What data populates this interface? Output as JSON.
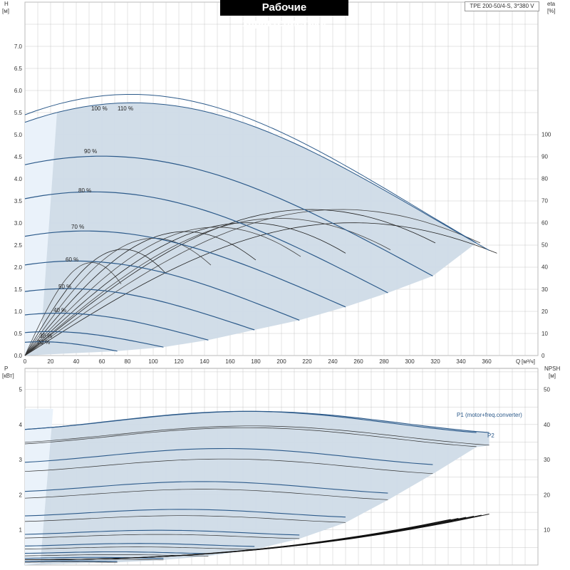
{
  "title": "Рабочие характеристики",
  "model": "TPE 200-50/4-S, 3*380 V",
  "colors": {
    "fill": "#cfdbe7",
    "fill_light": "#eaf2fa",
    "curve": "#2c5a8a",
    "grid": "#c8c8c8",
    "eff": "#555555"
  },
  "chart_data": [
    {
      "type": "line",
      "name_key": "head",
      "ylabel": "H",
      "yunit": "[м]",
      "y2label": "eta",
      "y2unit": "[%]",
      "xlabel": "Q",
      "xunit": "[м³/ч]",
      "xlim": [
        0,
        400
      ],
      "ylim": [
        0,
        8
      ],
      "y2lim": [
        0,
        100
      ],
      "x_ticks": [
        0,
        20,
        40,
        60,
        80,
        100,
        120,
        140,
        160,
        180,
        200,
        220,
        240,
        260,
        280,
        300,
        320,
        340,
        360
      ],
      "y_ticks": [
        "0.0",
        "0.5",
        "1.0",
        "1.5",
        "2.0",
        "2.5",
        "3.0",
        "3.5",
        "4.0",
        "4.5",
        "5.0",
        "5.5",
        "6.0",
        "6.5",
        "7.0"
      ],
      "y2_ticks": [
        0,
        10,
        20,
        30,
        40,
        50,
        60,
        70,
        80,
        90,
        100
      ],
      "grid": true,
      "speed_curves": [
        {
          "label": "110 %",
          "h0": 5.28,
          "qmax": 362,
          "hend": 2.38
        },
        {
          "label": "100 %",
          "h0": 5.45,
          "qmax": 352,
          "hend": 2.55
        },
        {
          "label": "90 %",
          "h0": 4.32,
          "qmax": 318,
          "hend": 1.8
        },
        {
          "label": "80 %",
          "h0": 3.55,
          "qmax": 283,
          "hend": 1.42
        },
        {
          "label": "70 %",
          "h0": 2.7,
          "qmax": 250,
          "hend": 1.1
        },
        {
          "label": "60 %",
          "h0": 2.05,
          "qmax": 214,
          "hend": 0.8
        },
        {
          "label": "50 %",
          "h0": 1.45,
          "qmax": 179,
          "hend": 0.58
        },
        {
          "label": "40 %",
          "h0": 0.92,
          "qmax": 143,
          "hend": 0.35
        },
        {
          "label": "30 %",
          "h0": 0.52,
          "qmax": 108,
          "hend": 0.19
        },
        {
          "label": "20 %",
          "h0": 0.3,
          "qmax": 72,
          "hend": 0.1
        }
      ],
      "eff_curves": [
        {
          "qmax": 368,
          "peak": 60
        },
        {
          "qmax": 355,
          "peak": 66
        },
        {
          "qmax": 320,
          "peak": 66
        },
        {
          "qmax": 285,
          "peak": 62
        },
        {
          "qmax": 250,
          "peak": 60
        },
        {
          "qmax": 215,
          "peak": 58
        },
        {
          "qmax": 180,
          "peak": 56
        },
        {
          "qmax": 145,
          "peak": 53
        },
        {
          "qmax": 110,
          "peak": 48
        },
        {
          "qmax": 75,
          "peak": 42
        }
      ]
    },
    {
      "type": "line",
      "name_key": "power",
      "ylabel": "P",
      "yunit": "[кВт]",
      "y2label": "NPSH",
      "y2unit": "[м]",
      "xlim": [
        0,
        400
      ],
      "ylim": [
        0,
        5.6
      ],
      "y2lim": [
        0,
        56
      ],
      "y_ticks": [
        1,
        2,
        3,
        4,
        5
      ],
      "y2_ticks": [
        10,
        20,
        30,
        40,
        50
      ],
      "grid": true,
      "series_labels": [
        "P1 (motor+freq.converter)",
        "P2"
      ],
      "power_curves": [
        {
          "qmax": 362,
          "p1": 4.42,
          "p2": 4.0
        },
        {
          "qmax": 352,
          "p1": 4.42,
          "p2": 3.95
        },
        {
          "qmax": 318,
          "p1": 3.35,
          "p2": 3.05
        },
        {
          "qmax": 283,
          "p1": 2.4,
          "p2": 2.18
        },
        {
          "qmax": 250,
          "p1": 1.6,
          "p2": 1.42
        },
        {
          "qmax": 214,
          "p1": 1.0,
          "p2": 0.88
        },
        {
          "qmax": 179,
          "p1": 0.62,
          "p2": 0.52
        },
        {
          "qmax": 143,
          "p1": 0.38,
          "p2": 0.3
        },
        {
          "qmax": 108,
          "p1": 0.22,
          "p2": 0.17
        },
        {
          "qmax": 72,
          "p1": 0.12,
          "p2": 0.09
        }
      ],
      "npsh_max": 14.5
    }
  ]
}
